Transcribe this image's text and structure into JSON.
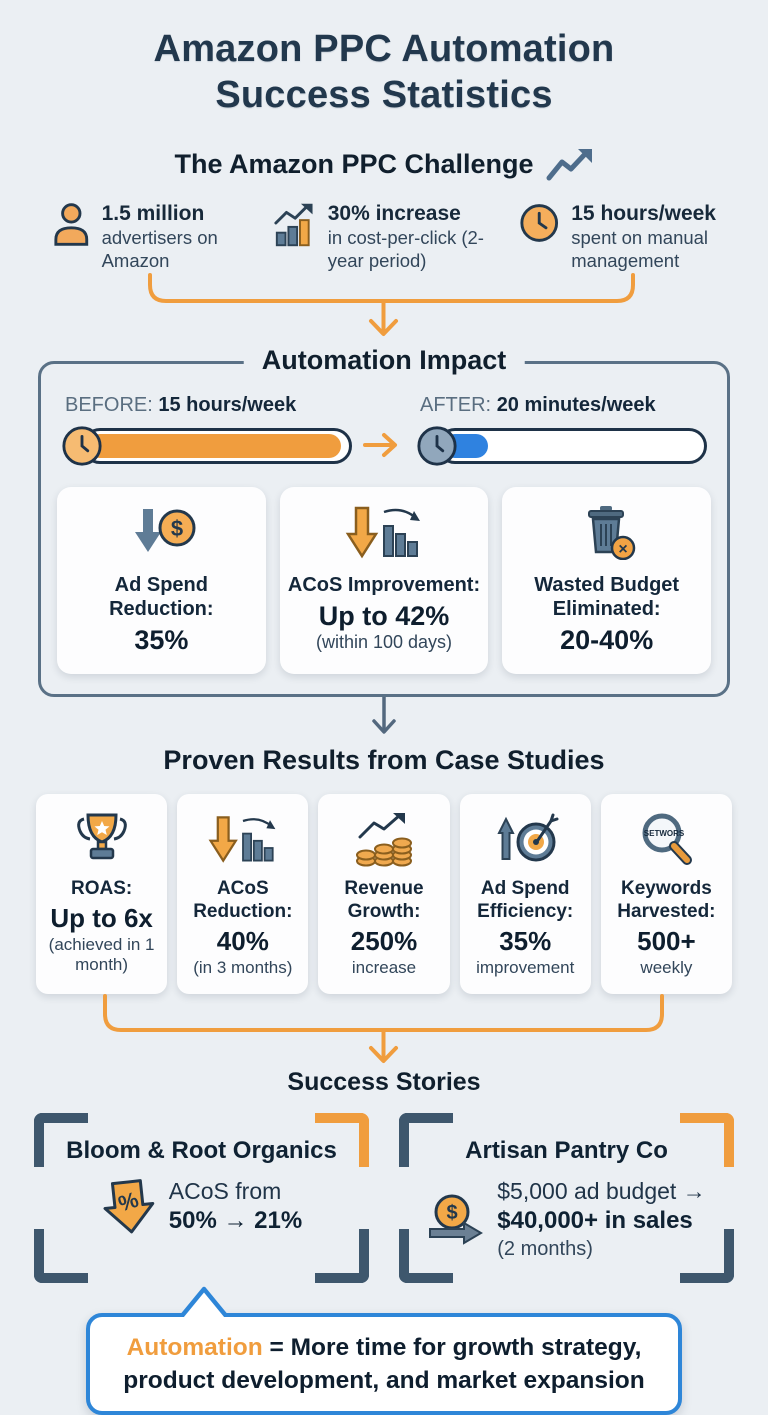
{
  "page": {
    "title_line1": "Amazon PPC Automation",
    "title_line2": "Success Statistics"
  },
  "challenge": {
    "heading": "The Amazon PPC Challenge",
    "stats": [
      {
        "icon": "person-icon",
        "value": "1.5 million",
        "desc": "advertisers on Amazon"
      },
      {
        "icon": "rising-chart-icon",
        "value": "30% increase",
        "desc": "in cost-per-click (2-year period)"
      },
      {
        "icon": "clock-icon",
        "value": "15 hours/week",
        "desc": "spent on manual management"
      }
    ]
  },
  "impact": {
    "heading": "Automation Impact",
    "before": {
      "label": "BEFORE:",
      "value": "15 hours/week",
      "fill_pct": 96
    },
    "after": {
      "label": "AFTER:",
      "value": "20 minutes/week",
      "fill_pct": 17
    },
    "cards": [
      {
        "icon": "dollar-down-icon",
        "title": "Ad Spend Reduction:",
        "value": "35%"
      },
      {
        "icon": "declining-bars-icon",
        "title": "ACoS Improvement:",
        "value": "Up to 42%",
        "sub": "(within 100 days)"
      },
      {
        "icon": "trash-icon",
        "title": "Wasted Budget Eliminated:",
        "value": "20-40%"
      }
    ]
  },
  "case_studies": {
    "heading": "Proven Results from Case Studies",
    "cards": [
      {
        "icon": "trophy-icon",
        "title": "ROAS:",
        "value": "Up to 6x",
        "sub": "(achieved in 1 month)"
      },
      {
        "icon": "declining-bars-icon",
        "title": "ACoS Reduction:",
        "value": "40%",
        "sub": "(in 3 months)"
      },
      {
        "icon": "coin-stacks-icon",
        "title": "Revenue Growth:",
        "value": "250%",
        "sub": "increase"
      },
      {
        "icon": "target-up-icon",
        "title": "Ad Spend Efficiency:",
        "value": "35%",
        "sub": "improvement"
      },
      {
        "icon": "magnifier-icon",
        "title": "Keywords Harvested:",
        "value": "500+",
        "sub": "weekly"
      }
    ]
  },
  "stories": {
    "heading": "Success Stories",
    "left": {
      "name": "Bloom & Root Organics",
      "line1": "ACoS from",
      "line2": "50% → 21%"
    },
    "right": {
      "name": "Artisan Pantry Co",
      "line1": "$5,000 ad budget →",
      "line2": "$40,000+ in sales",
      "line3": "(2 months)"
    }
  },
  "callout": {
    "highlight": "Automation",
    "rest": " = More time for growth strategy, product development, and market expansion"
  },
  "icons": {
    "dollar": "$",
    "percent": "%",
    "times": "×",
    "magnifier_text": "SETWORS"
  },
  "colors": {
    "bg": "#EBEFF3",
    "navy": "#22384D",
    "orange": "#F09D3E",
    "slate": "#54708A",
    "blue": "#2E86D8"
  }
}
